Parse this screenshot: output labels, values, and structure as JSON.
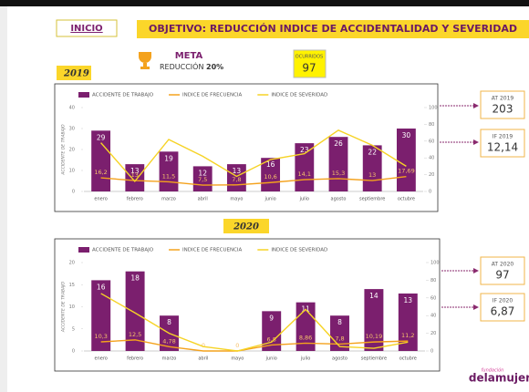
{
  "header": {
    "home": "INICIO",
    "title": "OBJETIVO: REDUCCIÓN INDICE DE ACCIDENTALIDAD Y SEVERIDAD"
  },
  "goal": {
    "title": "META",
    "text": "REDUCCIÓN",
    "percent": "20%"
  },
  "occurrences": {
    "label": "OCURRIDOS",
    "value": "97"
  },
  "kpis": [
    {
      "label": "AT 2019",
      "value": "203"
    },
    {
      "label": "IF 2019",
      "value": "12,14"
    },
    {
      "label": "AT 2020",
      "value": "97"
    },
    {
      "label": "IF 2020",
      "value": "6,87"
    }
  ],
  "logo": {
    "small": "fundación",
    "name": "delamujer"
  },
  "chart_data": [
    {
      "type": "combo",
      "title": "2019",
      "ylabel": "ACCIDENTE DE TRABAJO",
      "categories": [
        "enero",
        "febrero",
        "marzo",
        "abril",
        "mayo",
        "junio",
        "julio",
        "agosto",
        "septiembre",
        "octubre"
      ],
      "ylim": [
        0,
        40
      ],
      "yticks": [
        0,
        10,
        20,
        30,
        40
      ],
      "y2lim": [
        0,
        100
      ],
      "y2ticks": [
        0,
        20,
        40,
        60,
        80,
        100
      ],
      "series": [
        {
          "name": "ACCIDENTE DE TRABAJO",
          "type": "bar",
          "color": "#7b1f6e",
          "values": [
            29,
            13,
            19,
            12,
            13,
            16,
            23,
            26,
            22,
            30
          ]
        },
        {
          "name": "INDICE DE FRECUENCIA",
          "type": "line",
          "axis": "y2",
          "color": "#f4a21d",
          "values": [
            16.2,
            13,
            11.5,
            7.5,
            7.8,
            10.6,
            14.1,
            15.3,
            13,
            17.69
          ],
          "value_labels": [
            "16,2",
            "13",
            "11,5",
            "7,5",
            "7,8",
            "10,6",
            "14,1",
            "15,3",
            "13",
            "17,69"
          ]
        },
        {
          "name": "INDICE DE SEVERIDAD",
          "type": "line",
          "axis": "y2",
          "color": "#f6d325",
          "values": [
            58,
            12,
            62,
            42,
            18,
            38,
            45,
            73,
            55,
            30
          ]
        }
      ]
    },
    {
      "type": "combo",
      "title": "2020",
      "ylabel": "ACCIDENTE DE TRABAJO",
      "categories": [
        "enero",
        "febrero",
        "marzo",
        "abril",
        "mayo",
        "junio",
        "julio",
        "agosto",
        "septiembre",
        "octubre"
      ],
      "ylim": [
        0,
        20
      ],
      "yticks": [
        0,
        5,
        10,
        15,
        20
      ],
      "y2lim": [
        0,
        100
      ],
      "y2ticks": [
        0,
        20,
        40,
        60,
        80,
        100
      ],
      "series": [
        {
          "name": "ACCIDENTE DE TRABAJO",
          "type": "bar",
          "color": "#7b1f6e",
          "values": [
            16,
            18,
            8,
            null,
            null,
            9,
            11,
            8,
            14,
            13
          ]
        },
        {
          "name": "INDICE DE FRECUENCIA",
          "type": "line",
          "axis": "y2",
          "color": "#f4a21d",
          "values": [
            10.3,
            12.5,
            4.78,
            0,
            0,
            6.8,
            8.86,
            7.8,
            10.19,
            11.2
          ],
          "value_labels": [
            "10,3",
            "12,5",
            "4,78",
            "0",
            "0",
            "6,8",
            "8,86",
            "7,8",
            "10,19",
            "11,2"
          ]
        },
        {
          "name": "INDICE DE SEVERIDAD",
          "type": "line",
          "axis": "y2",
          "color": "#f6d325",
          "values": [
            65,
            43,
            20,
            5,
            0,
            10,
            47,
            5,
            3,
            10
          ]
        }
      ]
    }
  ]
}
